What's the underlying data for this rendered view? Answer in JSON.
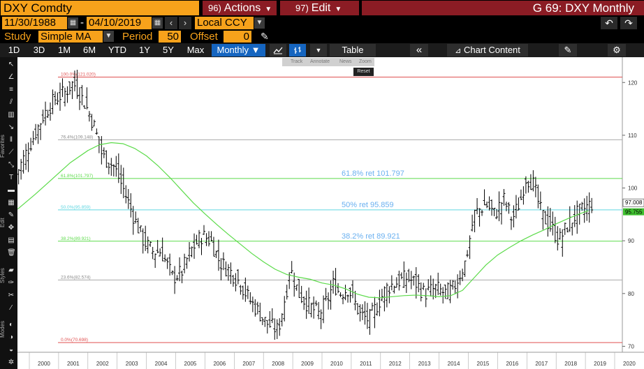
{
  "header": {
    "ticker": "DXY Comdty",
    "actions": {
      "num": "96)",
      "label": "Actions"
    },
    "edit": {
      "num": "97)",
      "label": "Edit"
    },
    "title": "G 69: DXY Monthly"
  },
  "range": {
    "start": "11/30/1988",
    "end": "04/10/2019",
    "currency": "Local CCY"
  },
  "study": {
    "label": "Study",
    "value": "Simple MA",
    "period_label": "Period",
    "period_value": "50",
    "offset_label": "Offset",
    "offset_value": "0"
  },
  "toolbar": {
    "ranges": [
      "1D",
      "3D",
      "1M",
      "6M",
      "YTD",
      "1Y",
      "5Y",
      "Max"
    ],
    "frequency": "Monthly",
    "table": "Table",
    "chart_content": "Chart Content"
  },
  "leftbar": {
    "favorites": "Favorites",
    "edit": "Edit",
    "styles": "Styles",
    "modes": "Modes"
  },
  "floatbar": {
    "track": "Track",
    "annotate": "Annotate",
    "news": "News",
    "zoom": "Zoom",
    "reset": "Reset"
  },
  "colors": {
    "orange": "#f7a21b",
    "red_header": "#8b1c24",
    "active_blue": "#1565c0",
    "ma_line": "#5cdb4a",
    "fib_label": "#6ab0f0"
  },
  "chart_data": {
    "type": "line",
    "title": "",
    "xlabel": "",
    "ylabel": "",
    "ylim": [
      69,
      124
    ],
    "x_ticks": [
      "2000",
      "2001",
      "2002",
      "2003",
      "2004",
      "2005",
      "2006",
      "2007",
      "2008",
      "2009",
      "2010",
      "2011",
      "2012",
      "2013",
      "2014",
      "2015",
      "2016",
      "2017",
      "2018",
      "2019",
      "2020"
    ],
    "y_ticks": [
      70,
      80,
      90,
      100,
      110,
      120
    ],
    "series": [
      {
        "kind": "ohlc",
        "x": [
          1999.5,
          2000.0,
          2000.5,
          2000.9,
          2001.2,
          2001.5,
          2001.9,
          2002.2,
          2002.5,
          2002.9,
          2003.2,
          2003.6,
          2003.9,
          2004.2,
          2004.5,
          2004.9,
          2005.2,
          2005.5,
          2005.9,
          2006.2,
          2006.5,
          2006.9,
          2007.2,
          2007.5,
          2007.9,
          2008.0,
          2008.2,
          2008.5,
          2008.8,
          2008.9,
          2009.2,
          2009.5,
          2009.9,
          2010.2,
          2010.4,
          2010.6,
          2010.9,
          2011.3,
          2011.6,
          2011.9,
          2012.2,
          2012.5,
          2012.9,
          2013.2,
          2013.5,
          2013.9,
          2014.2,
          2014.5,
          2014.9,
          2015.2,
          2015.6,
          2015.9,
          2016.2,
          2016.5,
          2016.8,
          2016.95,
          2017.2,
          2017.5,
          2017.9,
          2018.1,
          2018.4,
          2018.7,
          2018.95,
          2019.2
        ],
        "y": [
          102,
          108,
          114,
          117,
          118,
          120,
          116,
          112,
          106,
          104,
          100,
          94,
          90,
          88,
          88,
          83,
          84,
          88,
          91,
          90,
          86,
          84,
          82,
          79,
          76,
          75,
          74,
          73,
          81,
          85,
          80,
          78,
          76,
          79,
          82,
          80,
          81,
          76,
          75,
          78,
          81,
          82,
          83,
          82,
          80,
          81,
          80,
          81,
          86,
          95,
          97,
          95,
          98,
          94,
          98,
          102,
          101,
          95,
          92,
          90,
          93,
          95,
          96,
          97
        ]
      },
      {
        "name": "",
        "kind": "ma",
        "x": [
          1999.6,
          2000.2,
          2000.8,
          2001.4,
          2002.0,
          2002.4,
          2002.8,
          2003.2,
          2003.6,
          2004.0,
          2004.4,
          2004.8,
          2005.2,
          2005.6,
          2006.0,
          2006.4,
          2006.8,
          2007.2,
          2007.6,
          2008.0,
          2008.4,
          2008.8,
          2009.2,
          2009.6,
          2010.0,
          2010.4,
          2010.8,
          2011.2,
          2011.6,
          2012.0,
          2012.4,
          2012.8,
          2013.2,
          2013.6,
          2014.0,
          2014.4,
          2014.8,
          2015.2,
          2015.6,
          2016.0,
          2016.4,
          2016.8,
          2017.2,
          2017.6,
          2018.0,
          2018.4,
          2018.8,
          2019.1
        ],
        "y": [
          96,
          98.8,
          101.8,
          104.8,
          107.1,
          108.2,
          108.6,
          108.4,
          107.5,
          106.1,
          104.2,
          102.0,
          99.6,
          97.2,
          95.1,
          93.1,
          91.2,
          89.4,
          87.6,
          86.0,
          84.6,
          83.6,
          83.1,
          82.7,
          82.0,
          81.6,
          80.9,
          79.9,
          79.3,
          79.2,
          79.4,
          79.6,
          79.7,
          79.6,
          79.4,
          79.6,
          80.6,
          83.0,
          85.4,
          87.3,
          88.7,
          90.0,
          91.1,
          92.1,
          93.2,
          94.2,
          95.1,
          95.7
        ]
      }
    ],
    "fib_levels": [
      {
        "label": "100.0%(121.020)",
        "value": 121.02,
        "color": "#e05050"
      },
      {
        "label": "76.4%(109.148)",
        "value": 109.148,
        "color": "#aaaaaa"
      },
      {
        "label": "61.8%(101.797)",
        "value": 101.797,
        "color": "#5cdb4a"
      },
      {
        "label": "50.0%(95.859)",
        "value": 95.859,
        "color": "#5fd6e0"
      },
      {
        "label": "38.2%(89.921)",
        "value": 89.921,
        "color": "#5cdb4a"
      },
      {
        "label": "23.6%(82.574)",
        "value": 82.574,
        "color": "#aaaaaa"
      },
      {
        "label": "0.0%(70.698)",
        "value": 70.698,
        "color": "#e05050"
      }
    ],
    "annotations": [
      {
        "text": "61.8% ret 101.797",
        "value": 101.797
      },
      {
        "text": "50% ret 95.859",
        "value": 95.859
      },
      {
        "text": "38.2% ret 89.921",
        "value": 89.921
      }
    ],
    "last_price": "97.008",
    "ma_last": "95.755"
  }
}
